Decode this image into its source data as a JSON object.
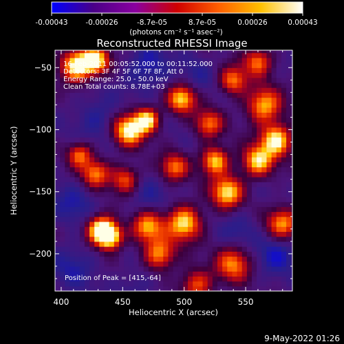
{
  "chart_data": {
    "type": "heatmap",
    "title": "Reconstructed RHESSI Image",
    "xlabel": "Heliocentric X (arcsec)",
    "ylabel": "Heliocentric Y (arcsec)",
    "xlim": [
      395,
      588
    ],
    "ylim": [
      -230,
      -36
    ],
    "x_ticks": [
      400,
      450,
      500,
      550
    ],
    "y_ticks": [
      -50,
      -100,
      -150,
      -200
    ],
    "colorbar": {
      "ticks": [
        "-0.00043",
        "-0.00026",
        "-8.7e-05",
        "8.7e-05",
        "0.00026",
        "0.00043"
      ],
      "unit_label": "(photons cm⁻² s⁻¹ asec⁻²)",
      "range": [
        -0.00043,
        0.00043
      ],
      "colors": [
        "#0000ff",
        "#4a0088",
        "#8a00a0",
        "#d00000",
        "#ff6000",
        "#ffc000",
        "#ffffff"
      ]
    },
    "annotations": [
      "16-Feb-2011 00:05:52.000 to 00:11:52.000",
      "Detectors: 3F 4F 5F 6F 7F 8F, Att 0",
      "Energy Range: 25.0 - 50.0 keV",
      "Clean     Total counts: 8.78E+03"
    ],
    "peak_label": "Position of Peak = [415,-64]",
    "hotspots": [
      {
        "x": 432,
        "y": -180,
        "v": 1.0,
        "r": 8
      },
      {
        "x": 440,
        "y": -186,
        "v": 0.9,
        "r": 7
      },
      {
        "x": 455,
        "y": -100,
        "v": 0.95,
        "r": 9
      },
      {
        "x": 470,
        "y": -92,
        "v": 0.85,
        "r": 7
      },
      {
        "x": 412,
        "y": -48,
        "v": 0.95,
        "r": 9
      },
      {
        "x": 428,
        "y": -44,
        "v": 0.9,
        "r": 8
      },
      {
        "x": 498,
        "y": -75,
        "v": 0.8,
        "r": 8
      },
      {
        "x": 565,
        "y": -80,
        "v": 0.75,
        "r": 10
      },
      {
        "x": 575,
        "y": -108,
        "v": 0.9,
        "r": 9
      },
      {
        "x": 560,
        "y": -125,
        "v": 0.8,
        "r": 9
      },
      {
        "x": 535,
        "y": -150,
        "v": 0.85,
        "r": 9
      },
      {
        "x": 525,
        "y": -125,
        "v": 0.8,
        "r": 8
      },
      {
        "x": 500,
        "y": -175,
        "v": 0.85,
        "r": 10
      },
      {
        "x": 470,
        "y": -178,
        "v": 0.7,
        "r": 9
      },
      {
        "x": 480,
        "y": -200,
        "v": 0.65,
        "r": 9
      },
      {
        "x": 540,
        "y": -208,
        "v": 0.6,
        "r": 10
      },
      {
        "x": 580,
        "y": -175,
        "v": 0.65,
        "r": 9
      },
      {
        "x": 428,
        "y": -135,
        "v": 0.6,
        "r": 8
      },
      {
        "x": 415,
        "y": -120,
        "v": 0.55,
        "r": 7
      },
      {
        "x": 560,
        "y": -45,
        "v": 0.55,
        "r": 8
      },
      {
        "x": 540,
        "y": -60,
        "v": 0.6,
        "r": 8
      },
      {
        "x": 520,
        "y": -95,
        "v": 0.55,
        "r": 8
      },
      {
        "x": 492,
        "y": -130,
        "v": 0.55,
        "r": 8
      },
      {
        "x": 452,
        "y": -140,
        "v": 0.5,
        "r": 8
      },
      {
        "x": 510,
        "y": -225,
        "v": 0.5,
        "r": 9
      }
    ],
    "coldspots": [
      {
        "x": 470,
        "y": -50,
        "v": -0.7,
        "r": 12
      },
      {
        "x": 430,
        "y": -90,
        "v": -0.6,
        "r": 12
      },
      {
        "x": 510,
        "y": -55,
        "v": -0.5,
        "r": 10
      },
      {
        "x": 410,
        "y": -160,
        "v": -0.6,
        "r": 12
      },
      {
        "x": 470,
        "y": -155,
        "v": -0.55,
        "r": 11
      },
      {
        "x": 410,
        "y": -210,
        "v": -0.6,
        "r": 12
      },
      {
        "x": 575,
        "y": -200,
        "v": -0.7,
        "r": 11
      },
      {
        "x": 545,
        "y": -180,
        "v": -0.55,
        "r": 10
      },
      {
        "x": 460,
        "y": -225,
        "v": -0.5,
        "r": 10
      }
    ]
  },
  "footer": {
    "date": "9-May-2022 01:26"
  }
}
